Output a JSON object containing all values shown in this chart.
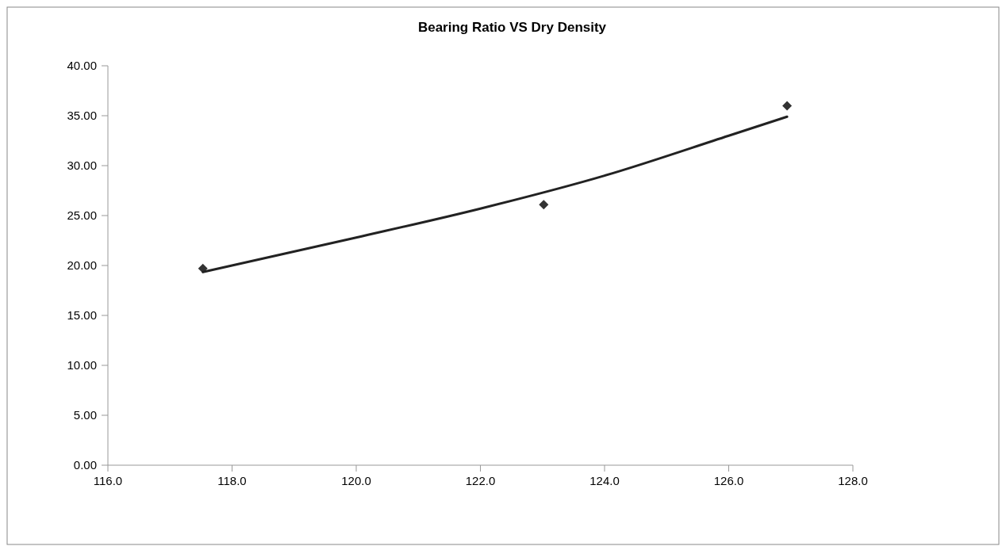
{
  "chart_data": {
    "type": "scatter",
    "title": "Bearing Ratio VS Dry Density",
    "xlim": [
      116,
      128
    ],
    "xticks": [
      {
        "value": 116,
        "label": "116.0"
      },
      {
        "value": 118,
        "label": "118.0"
      },
      {
        "value": 120,
        "label": "120.0"
      },
      {
        "value": 122,
        "label": "122.0"
      },
      {
        "value": 124,
        "label": "124.0"
      },
      {
        "value": 126,
        "label": "126.0"
      },
      {
        "value": 128,
        "label": "128.0"
      }
    ],
    "ylim": [
      0,
      40
    ],
    "yticks": [
      {
        "value": 0,
        "label": "0.00"
      },
      {
        "value": 5,
        "label": "5.00"
      },
      {
        "value": 10,
        "label": "10.00"
      },
      {
        "value": 15,
        "label": "15.00"
      },
      {
        "value": 20,
        "label": "20.00"
      },
      {
        "value": 25,
        "label": "25.00"
      },
      {
        "value": 30,
        "label": "30.00"
      },
      {
        "value": 35,
        "label": "35.00"
      },
      {
        "value": 40,
        "label": "40.00"
      }
    ],
    "grid": false,
    "series": [
      {
        "color": "#333333",
        "marker": "diamond",
        "x": [
          117.53,
          123.02,
          126.94
        ],
        "values": [
          19.7,
          26.1,
          36.0
        ]
      },
      {
        "type": "line",
        "color": "#222222",
        "marker": "none",
        "line_style": "solid",
        "x": [
          117.53,
          120,
          122,
          124,
          126,
          126.94
        ],
        "values": [
          19.35,
          22.8,
          25.7,
          29.0,
          33.0,
          34.9
        ]
      }
    ]
  }
}
